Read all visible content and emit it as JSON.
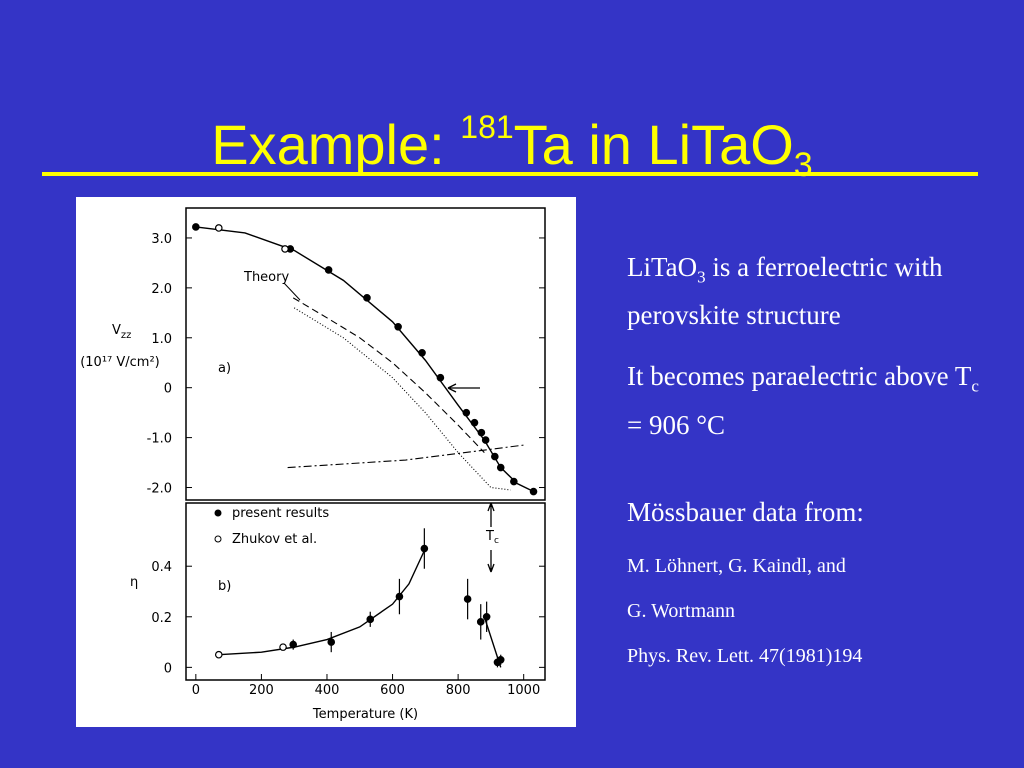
{
  "title": {
    "main": "Example: ",
    "sup": "181",
    "rest": "Ta in LiTaO",
    "sub": "3"
  },
  "paragraphs": [
    {
      "size": "large",
      "parts": [
        {
          "text": "LiTaO"
        },
        {
          "text": "3",
          "style": "sub"
        },
        {
          "text": " is a ferroelectric with perovskite structure"
        }
      ]
    },
    {
      "size": "large",
      "parts": [
        {
          "text": "It becomes paraelectric above T"
        },
        {
          "text": "c",
          "style": "sub"
        },
        {
          "text": " = 906 °C"
        }
      ]
    },
    {
      "size": "large",
      "parts": [
        {
          "text": "Mössbauer data from:"
        }
      ]
    },
    {
      "size": "small",
      "parts": [
        {
          "text": "M. Löhnert, G. Kaindl, and"
        }
      ]
    },
    {
      "size": "small",
      "parts": [
        {
          "text": "G. Wortmann"
        }
      ]
    },
    {
      "size": "small",
      "parts": [
        {
          "text": "Phys. Rev. Lett. 47(1981)194"
        }
      ]
    }
  ],
  "chart_data": [
    {
      "type": "scatter",
      "ylabel": {
        "main": "V",
        "sub": "zz"
      },
      "yunit": "(10¹⁷ V/cm²)",
      "xlim": [
        -30,
        1065
      ],
      "ylim": [
        -2.25,
        3.6
      ],
      "yticks": [
        {
          "value": 3,
          "label": "3.0"
        },
        {
          "value": 2,
          "label": "2.0"
        },
        {
          "value": 1,
          "label": "1.0"
        },
        0,
        {
          "value": -1,
          "label": "-1.0"
        },
        {
          "value": -2,
          "label": "-2.0"
        }
      ],
      "series": [
        {
          "marker": "filled",
          "color": "#000000",
          "x": [
            0,
            288,
            405,
            522,
            617,
            690,
            746,
            825,
            850,
            871,
            884,
            912,
            930,
            970,
            1030
          ],
          "values": [
            3.22,
            2.78,
            2.36,
            1.8,
            1.22,
            0.7,
            0.2,
            -0.5,
            -0.7,
            -0.9,
            -1.05,
            -1.38,
            -1.6,
            -1.88,
            -2.08
          ]
        },
        {
          "marker": "open",
          "color": "#000000",
          "x": [
            70,
            272
          ],
          "values": [
            3.2,
            2.78
          ]
        }
      ],
      "curves": [
        {
          "style": "solid",
          "x": [
            0,
            150,
            300,
            450,
            600,
            700,
            800,
            880,
            930,
            980,
            1030
          ],
          "values": [
            3.22,
            3.1,
            2.75,
            2.15,
            1.32,
            0.55,
            -0.35,
            -1.05,
            -1.6,
            -1.92,
            -2.08
          ]
        },
        {
          "style": "dashed",
          "x": [
            297,
            400,
            500,
            600,
            700,
            800,
            880
          ],
          "values": [
            1.8,
            1.4,
            1.0,
            0.5,
            -0.1,
            -0.75,
            -1.3
          ]
        },
        {
          "style": "dotted",
          "x": [
            300,
            450,
            600,
            700,
            800,
            900,
            960
          ],
          "values": [
            1.6,
            1.0,
            0.2,
            -0.5,
            -1.3,
            -2.0,
            -2.05
          ]
        },
        {
          "style": "dashdot",
          "x": [
            280,
            640,
            1000
          ],
          "values": [
            -1.6,
            -1.45,
            -1.15
          ]
        }
      ],
      "annotations": [
        {
          "text": "Theory"
        },
        {
          "text": "a)"
        }
      ]
    },
    {
      "type": "scatter",
      "ylabel": {
        "main": "η"
      },
      "xlabel": "Temperature (K)",
      "xlim": [
        -30,
        1065
      ],
      "ylim": [
        -0.05,
        0.65
      ],
      "xticks": [
        0,
        200,
        400,
        600,
        800,
        1000
      ],
      "yticks": [
        0,
        0.2,
        0.4
      ],
      "legend": "upper left",
      "series": [
        {
          "name": "present results",
          "marker": "filled",
          "color": "#000000",
          "x": [
            297,
            413,
            532,
            621,
            697,
            829,
            869,
            887,
            920,
            930
          ],
          "values": [
            0.09,
            0.1,
            0.19,
            0.28,
            0.47,
            0.27,
            0.18,
            0.2,
            0.02,
            0.03
          ],
          "errors": [
            0.02,
            0.04,
            0.03,
            0.07,
            0.08,
            0.08,
            0.07,
            0.06,
            0.02,
            0.02
          ]
        },
        {
          "name": "Zhukov et al.",
          "marker": "open",
          "color": "#000000",
          "x": [
            70,
            266
          ],
          "values": [
            0.05,
            0.08
          ]
        }
      ],
      "curves": [
        {
          "style": "solid",
          "x": [
            70,
            200,
            300,
            400,
            500,
            600,
            650,
            700
          ],
          "values": [
            0.05,
            0.06,
            0.08,
            0.11,
            0.16,
            0.25,
            0.33,
            0.47
          ]
        },
        {
          "style": "solid",
          "x": [
            880,
            930
          ],
          "values": [
            0.2,
            0.0
          ]
        }
      ],
      "annotations": [
        {
          "text": "b)"
        },
        {
          "text": "T",
          "sub": "c"
        }
      ]
    }
  ]
}
